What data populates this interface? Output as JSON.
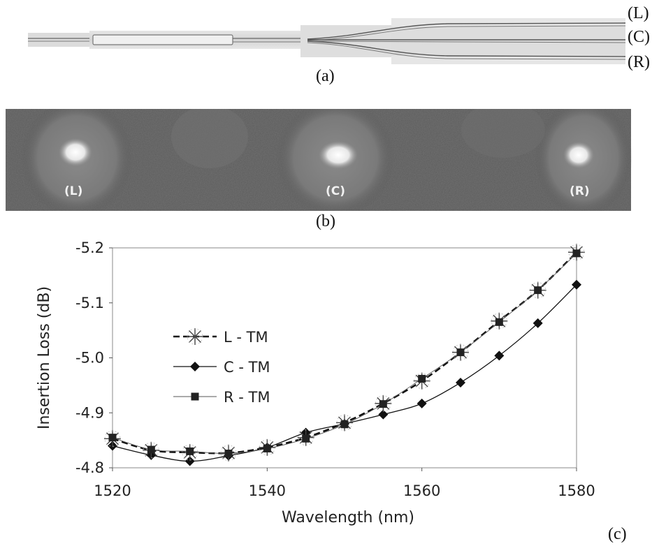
{
  "panel_a": {
    "label": "(a)",
    "ports": [
      "(L)",
      "(C)",
      "(R)"
    ]
  },
  "panel_b": {
    "label": "(b)",
    "spots": [
      "(L)",
      "(C)",
      "(R)"
    ]
  },
  "panel_c": {
    "label": "(c)"
  },
  "chart_data": {
    "type": "line",
    "title": "",
    "xlabel": "Wavelength (nm)",
    "ylabel": "Insertion Loss (dB)",
    "xlim": [
      1520,
      1580
    ],
    "ylim": [
      -4.8,
      -5.2
    ],
    "xticks": [
      "1520",
      "1540",
      "1560",
      "1580"
    ],
    "yticks": [
      "-5.2",
      "-5.1",
      "-5.0",
      "-4.9",
      "-4.8"
    ],
    "grid": false,
    "legend_position": "center-left",
    "x": [
      1520,
      1525,
      1530,
      1535,
      1540,
      1545,
      1550,
      1555,
      1560,
      1565,
      1570,
      1575,
      1580
    ],
    "series": [
      {
        "name": "L - TM",
        "marker": "asterisk",
        "line": "dashed",
        "color": "#111111",
        "values": [
          -4.853,
          -4.832,
          -4.828,
          -4.827,
          -4.837,
          -4.855,
          -4.882,
          -4.917,
          -4.958,
          -5.01,
          -5.067,
          -5.123,
          -5.192
        ]
      },
      {
        "name": "C - TM",
        "marker": "diamond",
        "line": "solid",
        "color": "#111111",
        "values": [
          -4.84,
          -4.823,
          -4.812,
          -4.822,
          -4.837,
          -4.864,
          -4.88,
          -4.897,
          -4.917,
          -4.955,
          -5.004,
          -5.063,
          -5.133
        ]
      },
      {
        "name": "R - TM",
        "marker": "square",
        "line": "thin",
        "color": "#555555",
        "values": [
          -4.855,
          -4.833,
          -4.83,
          -4.826,
          -4.835,
          -4.853,
          -4.879,
          -4.916,
          -4.962,
          -5.01,
          -5.065,
          -5.123,
          -5.19
        ]
      }
    ]
  }
}
